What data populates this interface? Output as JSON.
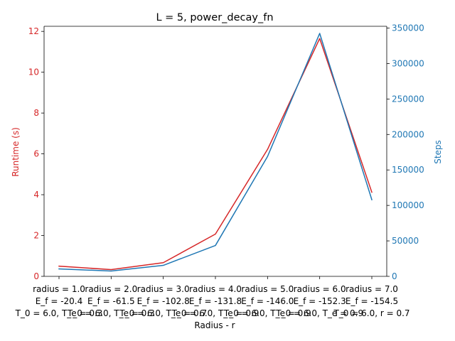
{
  "chart_data": {
    "type": "line",
    "title": "L = 5, power_decay_fn",
    "xlabel": "Radius - r",
    "ylabel_left": "Runtime (s)",
    "ylabel_right": "Steps",
    "x_tick_labels": [
      [
        "radius = 1.0",
        "E_f = -20.4",
        "T_0 = 6.0, T_e = 0.3"
      ],
      [
        "radius = 2.0",
        "E_f = -61.5",
        "T_0 = 6.0, T_e = 0.3"
      ],
      [
        "radius = 3.0",
        "E_f = -102.8",
        "T_0 = 6.0, T_e = 0.7"
      ],
      [
        "radius = 4.0",
        "E_f = -131.8",
        "T_0 = 6.0, T_e = 0.9"
      ],
      [
        "radius = 5.0",
        "E_f = -146.0",
        "T_0 = 6.0, T_e = 0.9"
      ],
      [
        "radius = 6.0",
        "E_f = -152.3",
        "T_0 = 6.0, T_e = 0.9"
      ],
      [
        "radius = 7.0",
        "E_f = -154.5",
        "T_0 = 6.0, r = 0.7"
      ]
    ],
    "left_ylim": [
      0,
      12.25
    ],
    "left_ticks": [
      0,
      2,
      4,
      6,
      8,
      10,
      12
    ],
    "right_ylim": [
      0,
      352500
    ],
    "right_ticks": [
      0,
      50000,
      100000,
      150000,
      200000,
      250000,
      300000,
      350000
    ],
    "colors": {
      "runtime": "#d62728",
      "steps": "#1f77b4"
    },
    "series": [
      {
        "name": "Runtime (s)",
        "axis": "left",
        "values": [
          0.5,
          0.33,
          0.67,
          2.07,
          6.22,
          11.65,
          4.12
        ]
      },
      {
        "name": "Steps",
        "axis": "right",
        "values": [
          10500,
          7500,
          15500,
          43500,
          169000,
          342500,
          108000
        ]
      }
    ],
    "grid": false
  }
}
